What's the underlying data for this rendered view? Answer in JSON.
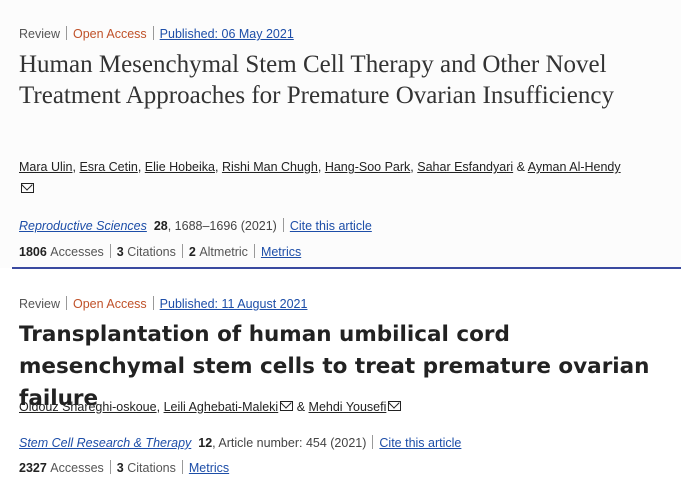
{
  "article1": {
    "type": "Review",
    "access": "Open Access",
    "published": "Published: 06 May 2021",
    "title": "Human Mesenchymal Stem Cell Therapy and Other Novel Treatment Approaches for Premature Ovarian Insufficiency",
    "authors": [
      "Mara Ulin",
      "Esra Cetin",
      "Elie Hobeika",
      "Rishi Man Chugh",
      "Hang-Soo Park",
      "Sahar Esfandyari",
      "Ayman Al-Hendy"
    ],
    "sep": ",",
    "amp": "&",
    "journal": "Reproductive Sciences",
    "volume": "28",
    "pages": ", 1688–1696 (2021)",
    "cite": "Cite this article",
    "accesses_count": "1806",
    "accesses_label": "Accesses",
    "citations_count": "3",
    "citations_label": "Citations",
    "altmetric_count": "2",
    "altmetric_label": "Altmetric",
    "metrics": "Metrics"
  },
  "article2": {
    "type": "Review",
    "access": "Open Access",
    "published": "Published: 11 August 2021",
    "title": "Transplantation of human umbilical cord mesenchymal stem cells to treat premature ovarian failure",
    "authors": [
      "Oldouz Shareghi-oskoue",
      "Leili Aghebati-Maleki",
      "Mehdi Yousefi"
    ],
    "sep": ",",
    "amp": "&",
    "journal": "Stem Cell Research & Therapy",
    "volume": "12",
    "pages": ", Article number: 454 (2021)",
    "cite": "Cite this article",
    "accesses_count": "2327",
    "accesses_label": "Accesses",
    "citations_count": "3",
    "citations_label": "Citations",
    "metrics": "Metrics"
  },
  "icons": {
    "mail": "mail-icon"
  },
  "colors": {
    "open_access": "#c0522a",
    "link": "#1d4ea8",
    "separator": "#3a4aa0"
  }
}
